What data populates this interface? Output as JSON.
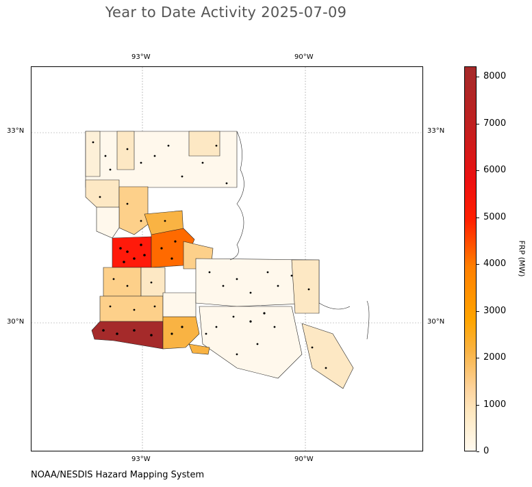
{
  "title": "Year to Date Activity 2025-07-09",
  "credit": "NOAA/NESDIS Hazard Mapping System",
  "map": {
    "region": "Louisiana parishes",
    "lon_labels": [
      "93°W",
      "90°W"
    ],
    "lat_labels": [
      "33°N",
      "30°N"
    ],
    "grid": true,
    "fire_detection_marker": "black dots",
    "colors": {
      "very_low": "#fff8ec",
      "low": "#fde8c4",
      "mid": "#fdd08a",
      "orange_mid": "#f9b343",
      "orange": "#ff6a00",
      "red": "#ff1a0a",
      "max": "#a52a2a"
    }
  },
  "colorbar": {
    "label": "FRP (MW)",
    "ticks": [
      "8000",
      "7000",
      "6000",
      "5000",
      "4000",
      "3000",
      "2000",
      "1000",
      "0"
    ],
    "min": 0,
    "max": 8200
  }
}
